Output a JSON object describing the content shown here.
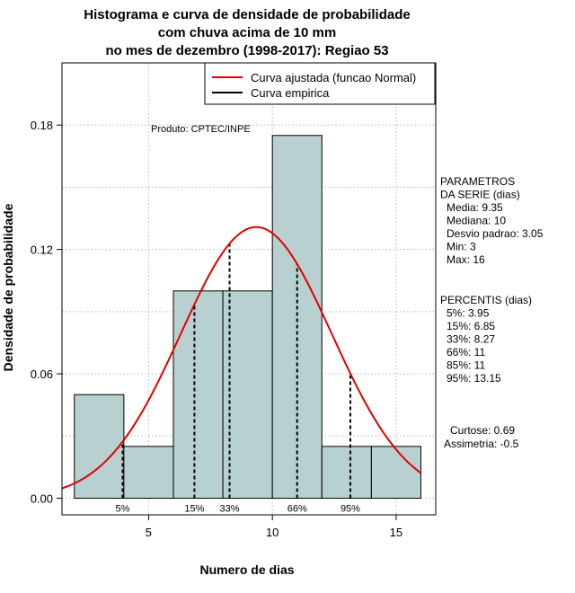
{
  "chart_data": {
    "type": "bar",
    "title_lines": [
      "Histograma e curva de densidade de probabilidade",
      "com chuva acima de 10 mm",
      "no mes de dezembro (1998-2017): Regiao 53"
    ],
    "xlabel": "Numero de dias",
    "ylabel": "Densidade de probabilidade",
    "xlim": [
      1.5,
      16.6
    ],
    "ylim": [
      -0.008,
      0.21
    ],
    "x_ticks": [
      5,
      10,
      15
    ],
    "x_tick_labels": [
      "5",
      "10",
      "15"
    ],
    "y_ticks": [
      0.0,
      0.06,
      0.12,
      0.18
    ],
    "y_tick_labels": [
      "0.00",
      "0.06",
      "0.12",
      "0.18"
    ],
    "grid": true,
    "bins": [
      {
        "from": 2,
        "to": 4,
        "density": 0.05
      },
      {
        "from": 4,
        "to": 6,
        "density": 0.025
      },
      {
        "from": 6,
        "to": 8,
        "density": 0.1
      },
      {
        "from": 8,
        "to": 10,
        "density": 0.1
      },
      {
        "from": 10,
        "to": 12,
        "density": 0.175
      },
      {
        "from": 12,
        "to": 14,
        "density": 0.025
      },
      {
        "from": 14,
        "to": 16,
        "density": 0.025
      }
    ],
    "bar_color": "#b8d0d0",
    "curve_color": "#e00000",
    "normal_curve": {
      "mean": 9.35,
      "sd": 3.05
    },
    "percentile_lines": [
      {
        "label": "5%",
        "x": 3.95
      },
      {
        "label": "15%",
        "x": 6.85
      },
      {
        "label": "33%",
        "x": 8.27
      },
      {
        "label": "66%",
        "x": 11
      },
      {
        "label": "95%",
        "x": 13.15
      }
    ],
    "legend": {
      "position": "top-right",
      "items": [
        {
          "label": "Curva ajustada (funcao Normal)",
          "color": "#e00000"
        },
        {
          "label": "Curva empirica",
          "color": "#000000"
        }
      ]
    },
    "product_label": "Produto: CPTEC/INPE",
    "side_panel": {
      "parametros": [
        "PARAMETROS",
        "DA SERIE (dias)",
        "Media: 9.35",
        "Mediana: 10",
        "Desvio padrao: 3.05",
        "Min: 3",
        "Max: 16"
      ],
      "percentis": [
        "PERCENTIS (dias)",
        "5%: 3.95",
        "15%: 6.85",
        "33%: 8.27",
        "66%: 11",
        "85%: 11",
        "95%: 13.15"
      ],
      "shape": [
        "Curtose: 0.69",
        "Assimetria: -0.5"
      ]
    }
  }
}
